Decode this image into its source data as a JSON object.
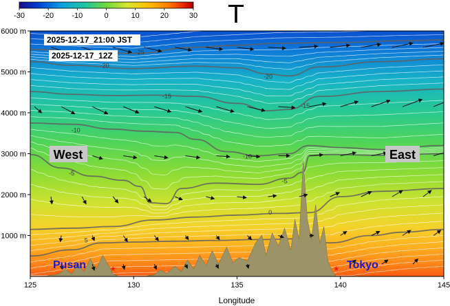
{
  "chart_data": {
    "type": "heatmap",
    "title": "T",
    "xlabel": "Longitude",
    "ylabel": "",
    "xlim": [
      125,
      145
    ],
    "ylim": [
      0,
      6000
    ],
    "x_ticks": [
      125,
      130,
      135,
      140,
      145
    ],
    "x_tick_labels": [
      "125",
      "130",
      "135",
      "140",
      "145"
    ],
    "y_ticks": [
      1000,
      2000,
      3000,
      4000,
      5000,
      6000
    ],
    "y_tick_labels": [
      "1000 m",
      "2000 m",
      "3000 m",
      "4000 m",
      "5000 m",
      "6000 m"
    ],
    "colorbar": {
      "ticks": [
        -30,
        -20,
        -10,
        0,
        10,
        20,
        30
      ],
      "tick_labels": [
        "-30",
        "-20",
        "-10",
        "0",
        "10",
        "20",
        "30"
      ],
      "colors": [
        "#1a0a8c",
        "#0047d6",
        "#0a9ee0",
        "#21c6a0",
        "#6fd93a",
        "#d8e830",
        "#ffc000",
        "#ff7a00",
        "#e81e00",
        "#a80000"
      ]
    },
    "valid_time_jst": "2025-12-17_21:00 JST",
    "valid_time_utc": "2025-12-17_12Z",
    "direction_labels": {
      "west": "West",
      "east": "East"
    },
    "cities": [
      {
        "name": "Pusan",
        "lon": 129.0
      },
      {
        "name": "Tokyo",
        "lon": 139.8
      }
    ],
    "contour_labels": [
      "-25",
      "-20",
      "-20",
      "-15",
      "-15",
      "-10",
      "-10",
      "-5",
      "-5",
      "0",
      "5"
    ],
    "contours": [
      {
        "level": -25,
        "points": [
          [
            125,
            5550
          ],
          [
            128,
            5480
          ],
          [
            130,
            5450
          ],
          [
            133,
            5600
          ],
          [
            135,
            5650
          ],
          [
            137,
            5700
          ],
          [
            140,
            5720
          ],
          [
            143,
            5760
          ],
          [
            145,
            5780
          ]
        ]
      },
      {
        "level": -20,
        "points": [
          [
            125,
            5250
          ],
          [
            127,
            5160
          ],
          [
            130,
            5080
          ],
          [
            133,
            5140
          ],
          [
            135,
            5100
          ],
          [
            136.5,
            4950
          ],
          [
            137.5,
            4900
          ],
          [
            139,
            5120
          ],
          [
            142,
            5250
          ],
          [
            145,
            5320
          ]
        ]
      },
      {
        "level": -15,
        "points": [
          [
            125,
            4520
          ],
          [
            127,
            4450
          ],
          [
            129,
            4420
          ],
          [
            131,
            4430
          ],
          [
            133,
            4400
          ],
          [
            135,
            4230
          ],
          [
            136.5,
            4050
          ],
          [
            137.5,
            4080
          ],
          [
            139,
            4400
          ],
          [
            142,
            4520
          ],
          [
            145,
            4580
          ]
        ]
      },
      {
        "level": -10,
        "points": [
          [
            125,
            3750
          ],
          [
            127,
            3720
          ],
          [
            129,
            3600
          ],
          [
            130.5,
            3550
          ],
          [
            132,
            3520
          ],
          [
            133,
            3350
          ],
          [
            134.5,
            3050
          ],
          [
            136,
            2950
          ],
          [
            137.5,
            3000
          ],
          [
            138.5,
            3200
          ],
          [
            140,
            3150
          ],
          [
            142,
            3100
          ],
          [
            145,
            3200
          ]
        ]
      },
      {
        "level": -5,
        "points": [
          [
            125,
            2980
          ],
          [
            126.5,
            2650
          ],
          [
            128,
            2450
          ],
          [
            129.5,
            2350
          ],
          [
            130.3,
            2200
          ],
          [
            130.8,
            1800
          ],
          [
            131.6,
            1780
          ],
          [
            132.3,
            2150
          ],
          [
            134,
            2280
          ],
          [
            136,
            2250
          ],
          [
            137.5,
            2400
          ],
          [
            138.2,
            2550
          ],
          [
            138.5,
            2950
          ],
          [
            139.5,
            2980
          ],
          [
            142,
            2960
          ],
          [
            145,
            3000
          ]
        ]
      },
      {
        "level": 0,
        "points": [
          [
            125,
            1150
          ],
          [
            127,
            1180
          ],
          [
            129,
            1220
          ],
          [
            131,
            1380
          ],
          [
            133,
            1450
          ],
          [
            135,
            1500
          ],
          [
            137,
            1540
          ],
          [
            138.5,
            1560
          ],
          [
            140,
            1950
          ],
          [
            142,
            2080
          ],
          [
            145,
            2150
          ]
        ]
      },
      {
        "level": 5,
        "points": [
          [
            125,
            500
          ],
          [
            127,
            650
          ],
          [
            128.5,
            820
          ],
          [
            130,
            840
          ],
          [
            132,
            860
          ],
          [
            134,
            880
          ],
          [
            136,
            900
          ],
          [
            138,
            920
          ],
          [
            139.5,
            820
          ],
          [
            141.5,
            1000
          ],
          [
            143,
            1080
          ],
          [
            145,
            1150
          ]
        ]
      }
    ],
    "contour_label_positions": [
      {
        "text": "-25",
        "lon": 130.3,
        "z": 5480
      },
      {
        "text": "-20",
        "lon": 128.6,
        "z": 5150
      },
      {
        "text": "-20",
        "lon": 136.5,
        "z": 4880
      },
      {
        "text": "-15",
        "lon": 131.6,
        "z": 4400
      },
      {
        "text": "-15",
        "lon": 138.3,
        "z": 4170
      },
      {
        "text": "-10",
        "lon": 127.2,
        "z": 3570
      },
      {
        "text": "-10",
        "lon": 135.5,
        "z": 2930
      },
      {
        "text": "-5",
        "lon": 127.0,
        "z": 2520
      },
      {
        "text": "-5",
        "lon": 137.3,
        "z": 2330
      },
      {
        "text": "0",
        "lon": 136.6,
        "z": 1560
      },
      {
        "text": "5",
        "lon": 127.7,
        "z": 880
      }
    ],
    "terrain": [
      [
        125,
        0
      ],
      [
        125.8,
        10
      ],
      [
        126.4,
        60
      ],
      [
        126.7,
        180
      ],
      [
        127.0,
        60
      ],
      [
        127.3,
        300
      ],
      [
        127.6,
        120
      ],
      [
        127.9,
        430
      ],
      [
        128.2,
        180
      ],
      [
        128.5,
        520
      ],
      [
        128.8,
        260
      ],
      [
        129.0,
        60
      ],
      [
        129.3,
        0
      ],
      [
        130.0,
        0
      ],
      [
        130.5,
        0
      ],
      [
        131.0,
        40
      ],
      [
        131.3,
        160
      ],
      [
        131.6,
        70
      ],
      [
        132.0,
        250
      ],
      [
        132.3,
        120
      ],
      [
        132.6,
        400
      ],
      [
        132.9,
        180
      ],
      [
        133.2,
        520
      ],
      [
        133.5,
        260
      ],
      [
        133.8,
        630
      ],
      [
        134.1,
        300
      ],
      [
        134.5,
        720
      ],
      [
        134.8,
        340
      ],
      [
        135.1,
        460
      ],
      [
        135.5,
        380
      ],
      [
        135.9,
        820
      ],
      [
        136.2,
        1010
      ],
      [
        136.4,
        520
      ],
      [
        136.7,
        1060
      ],
      [
        137.0,
        750
      ],
      [
        137.3,
        1180
      ],
      [
        137.6,
        640
      ],
      [
        137.8,
        1400
      ],
      [
        138.0,
        900
      ],
      [
        138.2,
        2820
      ],
      [
        138.4,
        1400
      ],
      [
        138.6,
        900
      ],
      [
        138.8,
        1750
      ],
      [
        139.0,
        820
      ],
      [
        139.2,
        1220
      ],
      [
        139.4,
        380
      ],
      [
        139.6,
        120
      ],
      [
        139.8,
        0
      ],
      [
        145,
        0
      ]
    ],
    "winds": [
      {
        "z": 5600,
        "vectors": [
          [
            126,
            38,
            -12
          ],
          [
            127.5,
            36,
            -12
          ],
          [
            129,
            36,
            -10
          ],
          [
            130.5,
            34,
            -8
          ],
          [
            132,
            32,
            -6
          ],
          [
            133.5,
            32,
            -4
          ],
          [
            135,
            32,
            -4
          ],
          [
            136.5,
            34,
            -2
          ],
          [
            138,
            36,
            2
          ],
          [
            139.5,
            38,
            4
          ],
          [
            141,
            38,
            6
          ],
          [
            142.5,
            40,
            8
          ],
          [
            144,
            40,
            8
          ]
        ]
      },
      {
        "z": 4150,
        "vectors": [
          [
            125.2,
            14,
            -12
          ],
          [
            126.5,
            26,
            -14
          ],
          [
            128,
            30,
            -14
          ],
          [
            129.5,
            30,
            -12
          ],
          [
            131,
            32,
            -10
          ],
          [
            132.5,
            32,
            -10
          ],
          [
            134,
            34,
            -10
          ],
          [
            135.5,
            34,
            -8
          ],
          [
            137,
            32,
            -2
          ],
          [
            138.5,
            32,
            6
          ],
          [
            140,
            34,
            10
          ],
          [
            141.5,
            36,
            12
          ],
          [
            143,
            38,
            14
          ],
          [
            144.5,
            40,
            16
          ]
        ]
      },
      {
        "z": 2950,
        "vectors": [
          [
            126.5,
            8,
            -6
          ],
          [
            128,
            20,
            -6
          ],
          [
            129.5,
            26,
            -4
          ],
          [
            131,
            26,
            -4
          ],
          [
            132.5,
            28,
            -4
          ],
          [
            134,
            26,
            -2
          ],
          [
            135.5,
            24,
            -2
          ],
          [
            137,
            22,
            0
          ],
          [
            138.5,
            26,
            2
          ],
          [
            140,
            30,
            6
          ],
          [
            141.5,
            30,
            6
          ],
          [
            143,
            28,
            6
          ],
          [
            144.5,
            28,
            8
          ]
        ]
      },
      {
        "z": 1950,
        "vectors": [
          [
            126,
            2,
            -14
          ],
          [
            127.5,
            8,
            -14
          ],
          [
            129,
            10,
            -12
          ],
          [
            130.5,
            14,
            -10
          ],
          [
            132,
            14,
            -6
          ],
          [
            133.5,
            16,
            -4
          ],
          [
            135,
            18,
            -2
          ],
          [
            136.5,
            16,
            2
          ],
          [
            138,
            16,
            4
          ],
          [
            139.5,
            18,
            8
          ],
          [
            141,
            20,
            10
          ],
          [
            142.5,
            20,
            12
          ],
          [
            144,
            16,
            12
          ]
        ]
      },
      {
        "z": 1000,
        "vectors": [
          [
            126.5,
            -2,
            -12
          ],
          [
            128,
            4,
            -10
          ],
          [
            129.5,
            8,
            -12
          ],
          [
            131,
            8,
            -10
          ],
          [
            132.5,
            6,
            -8
          ],
          [
            134,
            6,
            -8
          ],
          [
            135.5,
            8,
            -8
          ],
          [
            137,
            10,
            -4
          ],
          [
            138.5,
            8,
            0
          ],
          [
            140,
            12,
            8
          ],
          [
            141.5,
            16,
            8
          ],
          [
            143,
            16,
            10
          ],
          [
            144.5,
            14,
            10
          ]
        ]
      },
      {
        "z": 300,
        "vectors": [
          [
            126.5,
            2,
            -10
          ],
          [
            128,
            4,
            -12
          ],
          [
            129.5,
            2,
            -10
          ],
          [
            131,
            4,
            -10
          ],
          [
            132.5,
            4,
            -8
          ],
          [
            134,
            4,
            -8
          ],
          [
            135.5,
            2,
            -8
          ],
          [
            140.5,
            10,
            8
          ],
          [
            142,
            12,
            8
          ],
          [
            143.5,
            10,
            10
          ]
        ]
      }
    ]
  }
}
